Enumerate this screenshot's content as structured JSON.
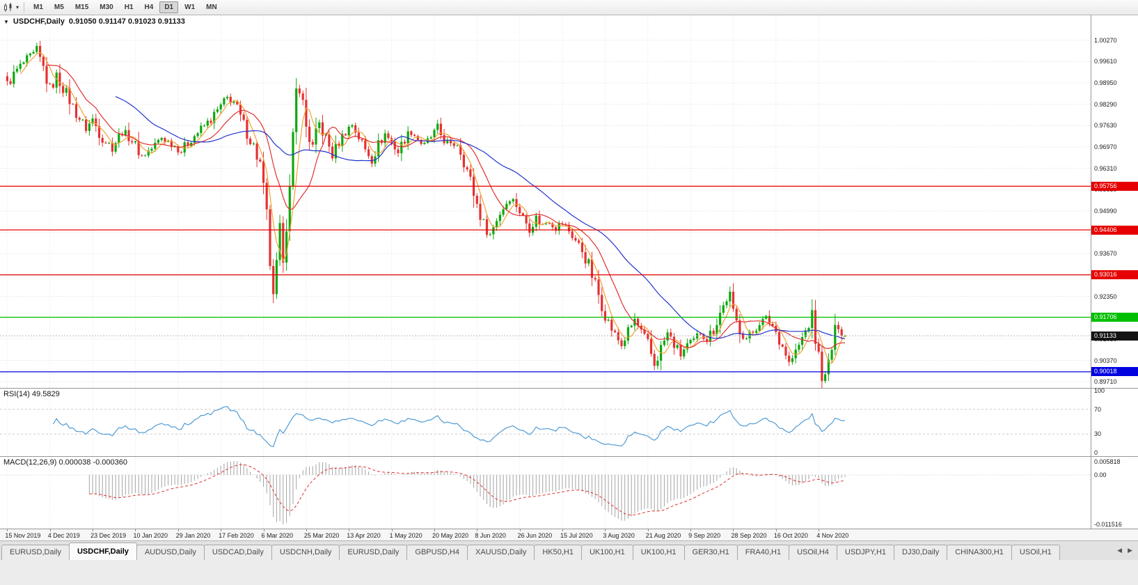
{
  "toolbar": {
    "timeframes": [
      "M1",
      "M5",
      "M15",
      "M30",
      "H1",
      "H4",
      "D1",
      "W1",
      "MN"
    ],
    "active_timeframe": "D1"
  },
  "main_chart": {
    "title": "USDCHF,Daily",
    "ohlc": "0.91050 0.91147 0.91023 0.91133"
  },
  "price_axis": {
    "labels": [
      "1.00270",
      "0.99610",
      "0.98950",
      "0.98290",
      "0.97630",
      "0.96970",
      "0.96310",
      "0.95650",
      "0.94990",
      "0.94330",
      "0.93670",
      "0.93010",
      "0.92350",
      "0.91690",
      "0.91030",
      "0.90370",
      "0.89710"
    ]
  },
  "rsi_panel": {
    "label": "RSI(14) 49.5829",
    "axis_labels": [
      "100",
      "70",
      "30",
      "0"
    ]
  },
  "macd_panel": {
    "label": "MACD(12,26,9) 0.000038 -0.000360",
    "axis_labels": [
      "0.005818",
      "0.00",
      "-0.011516"
    ]
  },
  "date_axis": {
    "labels": [
      "15 Nov 2019",
      "4 Dec 2019",
      "23 Dec 2019",
      "10 Jan 2020",
      "29 Jan 2020",
      "17 Feb 2020",
      "6 Mar 2020",
      "25 Mar 2020",
      "13 Apr 2020",
      "1 May 2020",
      "20 May 2020",
      "8 Jun 2020",
      "26 Jun 2020",
      "15 Jul 2020",
      "3 Aug 2020",
      "21 Aug 2020",
      "9 Sep 2020",
      "28 Sep 2020",
      "16 Oct 2020",
      "4 Nov 2020"
    ]
  },
  "tab_bar": {
    "tabs": [
      "EURUSD,Daily",
      "USDCHF,Daily",
      "AUDUSD,Daily",
      "USDCAD,Daily",
      "USDCNH,Daily",
      "EURUSD,Daily",
      "GBPUSD,H4",
      "XAUUSD,Daily",
      "HK50,H1",
      "UK100,H1",
      "UK100,H1",
      "GER30,H1",
      "FRA40,H1",
      "USOil,H4",
      "USDJPY,H1",
      "DJ30,Daily",
      "CHINA300,H1",
      "USOil,H1"
    ],
    "active_index": 1,
    "scroll_left": "◀",
    "scroll_right": "▶"
  },
  "chart_data": {
    "type": "candlestick",
    "symbol": "USDCHF",
    "period": "Daily",
    "last_bar": {
      "open": 0.9105,
      "high": 0.91147,
      "low": 0.91023,
      "close": 0.91133
    },
    "candle_count": 256,
    "candles_per_label": 13,
    "ylim": [
      0.8952,
      1.0104
    ],
    "up_color": "#0da80d",
    "down_color": "#e53131",
    "moving_averages": [
      {
        "period": 5,
        "color": "#f0a232"
      },
      {
        "period": 13,
        "color": "#e03030"
      },
      {
        "period": 34,
        "color": "#2233cc"
      }
    ],
    "hlines": [
      {
        "price": 0.95756,
        "label": "0.95756",
        "color": "#e60000"
      },
      {
        "price": 0.94406,
        "label": "0.94406",
        "color": "#e60000"
      },
      {
        "price": 0.93016,
        "label": "0.93016",
        "color": "#e60000"
      },
      {
        "price": 0.91706,
        "label": "0.91706",
        "color": "#00bf00"
      },
      {
        "price": 0.90018,
        "label": "0.90018",
        "color": "#0000e0"
      }
    ],
    "bid_line": {
      "price": 0.91133,
      "label": "0.91133",
      "tag_color": "#141414"
    },
    "rsi": {
      "period": 14,
      "value": 49.5829,
      "color": "#4f9bd5",
      "levels": [
        70,
        30
      ]
    },
    "macd": {
      "fast": 12,
      "slow": 26,
      "signal": 9,
      "main_value": 3.8e-05,
      "signal_value": -0.00036,
      "hist_color": "#a3a3a3",
      "signal_color": "#e03030"
    },
    "price_anchors": [
      [
        0,
        0.989
      ],
      [
        3,
        0.9935
      ],
      [
        6,
        0.9968
      ],
      [
        9,
        0.999
      ],
      [
        11,
        0.994
      ],
      [
        13,
        0.9875
      ],
      [
        15,
        0.9915
      ],
      [
        18,
        0.9862
      ],
      [
        21,
        0.98
      ],
      [
        24,
        0.9755
      ],
      [
        26,
        0.9782
      ],
      [
        29,
        0.9722
      ],
      [
        32,
        0.9698
      ],
      [
        35,
        0.9745
      ],
      [
        38,
        0.9718
      ],
      [
        41,
        0.9668
      ],
      [
        44,
        0.9692
      ],
      [
        47,
        0.9726
      ],
      [
        50,
        0.9708
      ],
      [
        53,
        0.9685
      ],
      [
        56,
        0.9722
      ],
      [
        59,
        0.9752
      ],
      [
        62,
        0.9782
      ],
      [
        65,
        0.9822
      ],
      [
        67,
        0.9848
      ],
      [
        69,
        0.9836
      ],
      [
        71,
        0.9788
      ],
      [
        73,
        0.9742
      ],
      [
        75,
        0.9698
      ],
      [
        77,
        0.964
      ],
      [
        79,
        0.948
      ],
      [
        80,
        0.934
      ],
      [
        81,
        0.9215
      ],
      [
        83,
        0.943
      ],
      [
        84,
        0.937
      ],
      [
        86,
        0.956
      ],
      [
        88,
        0.987
      ],
      [
        89,
        0.9893
      ],
      [
        91,
        0.976
      ],
      [
        93,
        0.969
      ],
      [
        95,
        0.9768
      ],
      [
        97,
        0.9722
      ],
      [
        99,
        0.9672
      ],
      [
        101,
        0.9712
      ],
      [
        103,
        0.9745
      ],
      [
        105,
        0.9768
      ],
      [
        107,
        0.9728
      ],
      [
        109,
        0.9688
      ],
      [
        111,
        0.9662
      ],
      [
        113,
        0.9705
      ],
      [
        115,
        0.9738
      ],
      [
        117,
        0.9712
      ],
      [
        119,
        0.9682
      ],
      [
        121,
        0.9722
      ],
      [
        123,
        0.9748
      ],
      [
        125,
        0.9722
      ],
      [
        127,
        0.9698
      ],
      [
        129,
        0.9728
      ],
      [
        131,
        0.9752
      ],
      [
        133,
        0.9718
      ],
      [
        135,
        0.9698
      ],
      [
        137,
        0.9712
      ],
      [
        139,
        0.966
      ],
      [
        141,
        0.959
      ],
      [
        143,
        0.952
      ],
      [
        145,
        0.946
      ],
      [
        147,
        0.9425
      ],
      [
        149,
        0.9475
      ],
      [
        151,
        0.951
      ],
      [
        153,
        0.9542
      ],
      [
        155,
        0.952
      ],
      [
        157,
        0.9478
      ],
      [
        159,
        0.9448
      ],
      [
        161,
        0.9478
      ],
      [
        163,
        0.9455
      ],
      [
        165,
        0.9472
      ],
      [
        167,
        0.9448
      ],
      [
        169,
        0.9462
      ],
      [
        171,
        0.9438
      ],
      [
        173,
        0.9408
      ],
      [
        175,
        0.9378
      ],
      [
        177,
        0.933
      ],
      [
        179,
        0.927
      ],
      [
        181,
        0.921
      ],
      [
        183,
        0.9155
      ],
      [
        185,
        0.9115
      ],
      [
        187,
        0.9085
      ],
      [
        189,
        0.9125
      ],
      [
        191,
        0.9162
      ],
      [
        193,
        0.9122
      ],
      [
        195,
        0.9085
      ],
      [
        197,
        0.9025
      ],
      [
        199,
        0.9075
      ],
      [
        201,
        0.912
      ],
      [
        203,
        0.9085
      ],
      [
        205,
        0.9055
      ],
      [
        207,
        0.9085
      ],
      [
        209,
        0.9095
      ],
      [
        211,
        0.9125
      ],
      [
        213,
        0.9105
      ],
      [
        215,
        0.9135
      ],
      [
        217,
        0.9185
      ],
      [
        219,
        0.9225
      ],
      [
        220,
        0.923
      ],
      [
        221,
        0.918
      ],
      [
        223,
        0.913
      ],
      [
        225,
        0.9105
      ],
      [
        227,
        0.9125
      ],
      [
        229,
        0.9155
      ],
      [
        231,
        0.9165
      ],
      [
        233,
        0.9145
      ],
      [
        235,
        0.9105
      ],
      [
        237,
        0.906
      ],
      [
        238,
        0.9028
      ],
      [
        240,
        0.906
      ],
      [
        242,
        0.9105
      ],
      [
        244,
        0.9148
      ],
      [
        245,
        0.9165
      ],
      [
        246,
        0.9105
      ],
      [
        247,
        0.9045
      ],
      [
        248,
        0.8988
      ],
      [
        249,
        0.8972
      ],
      [
        250,
        0.9025
      ],
      [
        251,
        0.9075
      ],
      [
        252,
        0.9125
      ],
      [
        253,
        0.9152
      ],
      [
        254,
        0.9126
      ],
      [
        255,
        0.9113
      ]
    ]
  }
}
